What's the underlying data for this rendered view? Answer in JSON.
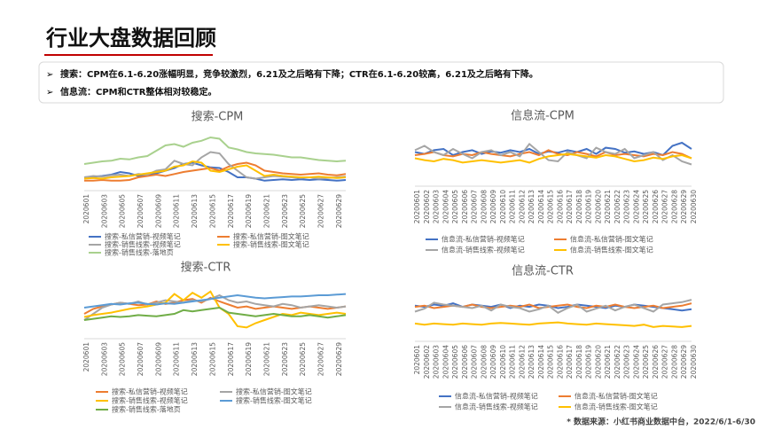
{
  "header": {
    "title": "行业大盘数据回顾"
  },
  "bullets": [
    "搜索：CPM在6.1-6.20涨幅明显，竞争较激烈，6.21及之后略有下降；CTR在6.1-6.20较高，6.21及之后略有下降。",
    "信息流：CPM和CTR整体相对较稳定。"
  ],
  "footnote": "* 数据来源：小红书商业数据中台，2022/6/1-6/30",
  "chart_data": [
    {
      "type": "line",
      "title": "搜索-CPM",
      "ylim": [
        0,
        100
      ],
      "categories": [
        "2020601",
        null,
        "20200603",
        null,
        "20200605",
        null,
        "20200607",
        null,
        "20200609",
        null,
        "20200611",
        null,
        "20200613",
        null,
        "20200615",
        null,
        "20200617",
        null,
        "20200619",
        null,
        "20200621",
        null,
        "20200623",
        null,
        "20200625",
        null,
        "20200627",
        null,
        "20200629",
        null
      ],
      "series": [
        {
          "name": "搜索-私信营销-视频笔记",
          "color": "#4472c4",
          "values": [
            20,
            21,
            22,
            24,
            28,
            26,
            22,
            24,
            26,
            30,
            34,
            40,
            42,
            38,
            35,
            34,
            28,
            20,
            20,
            18,
            15,
            16,
            17,
            16,
            17,
            16,
            17,
            16,
            15,
            16
          ]
        },
        {
          "name": "搜索-私信营销-图文笔记",
          "color": "#ed7d31",
          "values": [
            15,
            15,
            16,
            15,
            15,
            16,
            20,
            22,
            24,
            22,
            25,
            28,
            30,
            32,
            34,
            30,
            36,
            40,
            42,
            38,
            30,
            28,
            26,
            25,
            24,
            25,
            26,
            24,
            23,
            25
          ]
        },
        {
          "name": "搜索-销售线索-视频笔记",
          "color": "#a5a5a5",
          "values": [
            20,
            22,
            21,
            23,
            24,
            22,
            25,
            24,
            30,
            32,
            45,
            40,
            38,
            50,
            58,
            56,
            40,
            30,
            20,
            18,
            20,
            22,
            21,
            20,
            19,
            20,
            18,
            19,
            20,
            21
          ]
        },
        {
          "name": "搜索-销售线索-图文笔记",
          "color": "#ffc000",
          "values": [
            18,
            19,
            18,
            20,
            21,
            22,
            24,
            26,
            28,
            30,
            36,
            38,
            44,
            42,
            30,
            28,
            32,
            36,
            38,
            30,
            22,
            24,
            22,
            21,
            20,
            20,
            21,
            20,
            19,
            20
          ]
        },
        {
          "name": "搜索-销售线索-落地页",
          "color": "#a9d18e",
          "values": [
            40,
            42,
            44,
            45,
            48,
            47,
            50,
            52,
            60,
            68,
            70,
            66,
            72,
            75,
            80,
            78,
            65,
            62,
            58,
            56,
            55,
            54,
            52,
            50,
            50,
            48,
            46,
            45,
            44,
            45
          ]
        }
      ]
    },
    {
      "type": "line",
      "title": "信息流-CPM",
      "ylim": [
        0,
        100
      ],
      "categories": [
        "20200601",
        "20200602",
        "20200603",
        "20200604",
        "20200605",
        "20200606",
        "20200607",
        "20200608",
        "20200609",
        "20200610",
        "20200611",
        "20200612",
        "20200613",
        "20200614",
        "20200615",
        "20200616",
        "20200617",
        "20200618",
        "20200619",
        "20200620",
        "20200621",
        "20200622",
        "20200623",
        "20200624",
        "20200625",
        "20200626",
        "20200627",
        "20200628",
        "20200629",
        "20200630"
      ],
      "series": [
        {
          "name": "信息流-私信营销-视频笔记",
          "color": "#4472c4",
          "values": [
            55,
            52,
            58,
            60,
            50,
            55,
            58,
            52,
            56,
            54,
            58,
            55,
            60,
            52,
            56,
            54,
            58,
            55,
            60,
            52,
            62,
            60,
            54,
            56,
            52,
            55,
            50,
            65,
            70,
            60
          ]
        },
        {
          "name": "信息流-私信营销-图文笔记",
          "color": "#ed7d31",
          "values": [
            50,
            52,
            55,
            50,
            48,
            52,
            50,
            55,
            52,
            50,
            48,
            52,
            55,
            50,
            58,
            52,
            50,
            55,
            52,
            48,
            55,
            50,
            52,
            50,
            48,
            52,
            50,
            55,
            52,
            45
          ]
        },
        {
          "name": "信息流-销售线索-视频笔记",
          "color": "#a5a5a5",
          "values": [
            58,
            65,
            55,
            50,
            60,
            52,
            45,
            55,
            58,
            50,
            55,
            48,
            68,
            55,
            42,
            40,
            55,
            50,
            45,
            62,
            55,
            52,
            60,
            45,
            50,
            55,
            42,
            50,
            40,
            35
          ]
        },
        {
          "name": "信息流-销售线索-图文笔记",
          "color": "#ffc000",
          "values": [
            45,
            42,
            40,
            44,
            42,
            38,
            40,
            42,
            40,
            38,
            40,
            42,
            38,
            44,
            48,
            50,
            52,
            50,
            48,
            46,
            50,
            48,
            44,
            40,
            42,
            46,
            44,
            48,
            50,
            45
          ]
        }
      ]
    },
    {
      "type": "line",
      "title": "搜索-CTR",
      "ylim": [
        0,
        100
      ],
      "categories": [
        "2020601",
        null,
        "20200603",
        null,
        "20200605",
        null,
        "20200607",
        null,
        "20200609",
        null,
        "20200611",
        null,
        "20200613",
        null,
        "20200615",
        null,
        "20200617",
        null,
        "20200619",
        null,
        "20200621",
        null,
        "20200623",
        null,
        "20200625",
        null,
        "20200627",
        null,
        "20200629",
        null
      ],
      "series": [
        {
          "name": "搜索-私信营销-视频笔记",
          "color": "#ed7d31",
          "values": [
            40,
            48,
            52,
            55,
            58,
            56,
            54,
            55,
            60,
            56,
            58,
            62,
            64,
            58,
            66,
            60,
            55,
            50,
            52,
            48,
            50,
            52,
            50,
            48,
            50,
            52,
            50,
            48,
            50,
            52
          ]
        },
        {
          "name": "搜索-私信营销-图文笔记",
          "color": "#a5a5a5",
          "values": [
            30,
            40,
            50,
            55,
            58,
            56,
            60,
            55,
            58,
            62,
            60,
            58,
            62,
            60,
            64,
            70,
            62,
            58,
            60,
            56,
            54,
            52,
            56,
            54,
            50,
            52,
            54,
            52,
            50,
            52
          ]
        },
        {
          "name": "搜索-销售线索-视频笔记",
          "color": "#ffc000",
          "values": [
            35,
            38,
            40,
            42,
            45,
            48,
            50,
            52,
            55,
            58,
            72,
            62,
            74,
            66,
            76,
            50,
            40,
            20,
            18,
            25,
            30,
            35,
            40,
            38,
            42,
            40,
            38,
            40,
            42,
            40
          ]
        },
        {
          "name": "搜索-销售线索-图文笔记",
          "color": "#5b9bd5",
          "values": [
            50,
            52,
            54,
            56,
            55,
            57,
            58,
            56,
            55,
            57,
            56,
            58,
            60,
            62,
            64,
            66,
            68,
            70,
            68,
            66,
            65,
            66,
            67,
            68,
            68,
            69,
            70,
            70,
            71,
            72
          ]
        },
        {
          "name": "搜索-销售线索-落地页",
          "color": "#70ad47",
          "values": [
            30,
            32,
            34,
            36,
            35,
            36,
            38,
            37,
            36,
            38,
            40,
            46,
            44,
            46,
            48,
            50,
            42,
            40,
            38,
            36,
            38,
            40,
            38,
            36,
            36,
            38,
            36,
            34,
            36,
            38
          ]
        }
      ]
    },
    {
      "type": "line",
      "title": "信息流-CTR",
      "ylim": [
        0,
        100
      ],
      "categories": [
        "2020601",
        "20200602",
        "20200603",
        "20200604",
        "20200605",
        "20200606",
        "20200607",
        "20200608",
        "20200609",
        "20200610",
        "20200611",
        "20200612",
        "20200613",
        "20200614",
        "20200615",
        "20200616",
        "20200617",
        "20200618",
        "20200619",
        "20200620",
        "20200621",
        "20200622",
        "20200623",
        "20200624",
        "20200625",
        "20200626",
        "20200627",
        "20200628",
        "20200629",
        "20200630"
      ],
      "series": [
        {
          "name": "信息流-私信营销-视频笔记",
          "color": "#4472c4",
          "values": [
            60,
            58,
            62,
            60,
            64,
            58,
            62,
            60,
            58,
            62,
            56,
            60,
            58,
            62,
            60,
            56,
            58,
            62,
            60,
            58,
            56,
            60,
            58,
            62,
            60,
            58,
            56,
            54,
            52,
            54
          ]
        },
        {
          "name": "信息流-私信营销-图文笔记",
          "color": "#ed7d31",
          "values": [
            58,
            60,
            56,
            58,
            60,
            58,
            62,
            58,
            56,
            58,
            60,
            58,
            62,
            56,
            58,
            60,
            62,
            58,
            56,
            60,
            58,
            62,
            58,
            56,
            58,
            60,
            56,
            58,
            60,
            64
          ]
        },
        {
          "name": "信息流-销售线索-视频笔记",
          "color": "#a5a5a5",
          "values": [
            50,
            55,
            65,
            62,
            60,
            58,
            56,
            60,
            52,
            62,
            58,
            56,
            50,
            54,
            60,
            48,
            56,
            62,
            50,
            55,
            60,
            52,
            58,
            62,
            56,
            50,
            62,
            64,
            66,
            70
          ]
        },
        {
          "name": "信息流-销售线索-图文笔记",
          "color": "#ffc000",
          "values": [
            30,
            28,
            30,
            29,
            28,
            30,
            29,
            28,
            30,
            31,
            30,
            29,
            28,
            30,
            31,
            32,
            30,
            29,
            28,
            30,
            29,
            28,
            27,
            26,
            28,
            24,
            26,
            25,
            24,
            26
          ]
        }
      ]
    }
  ]
}
